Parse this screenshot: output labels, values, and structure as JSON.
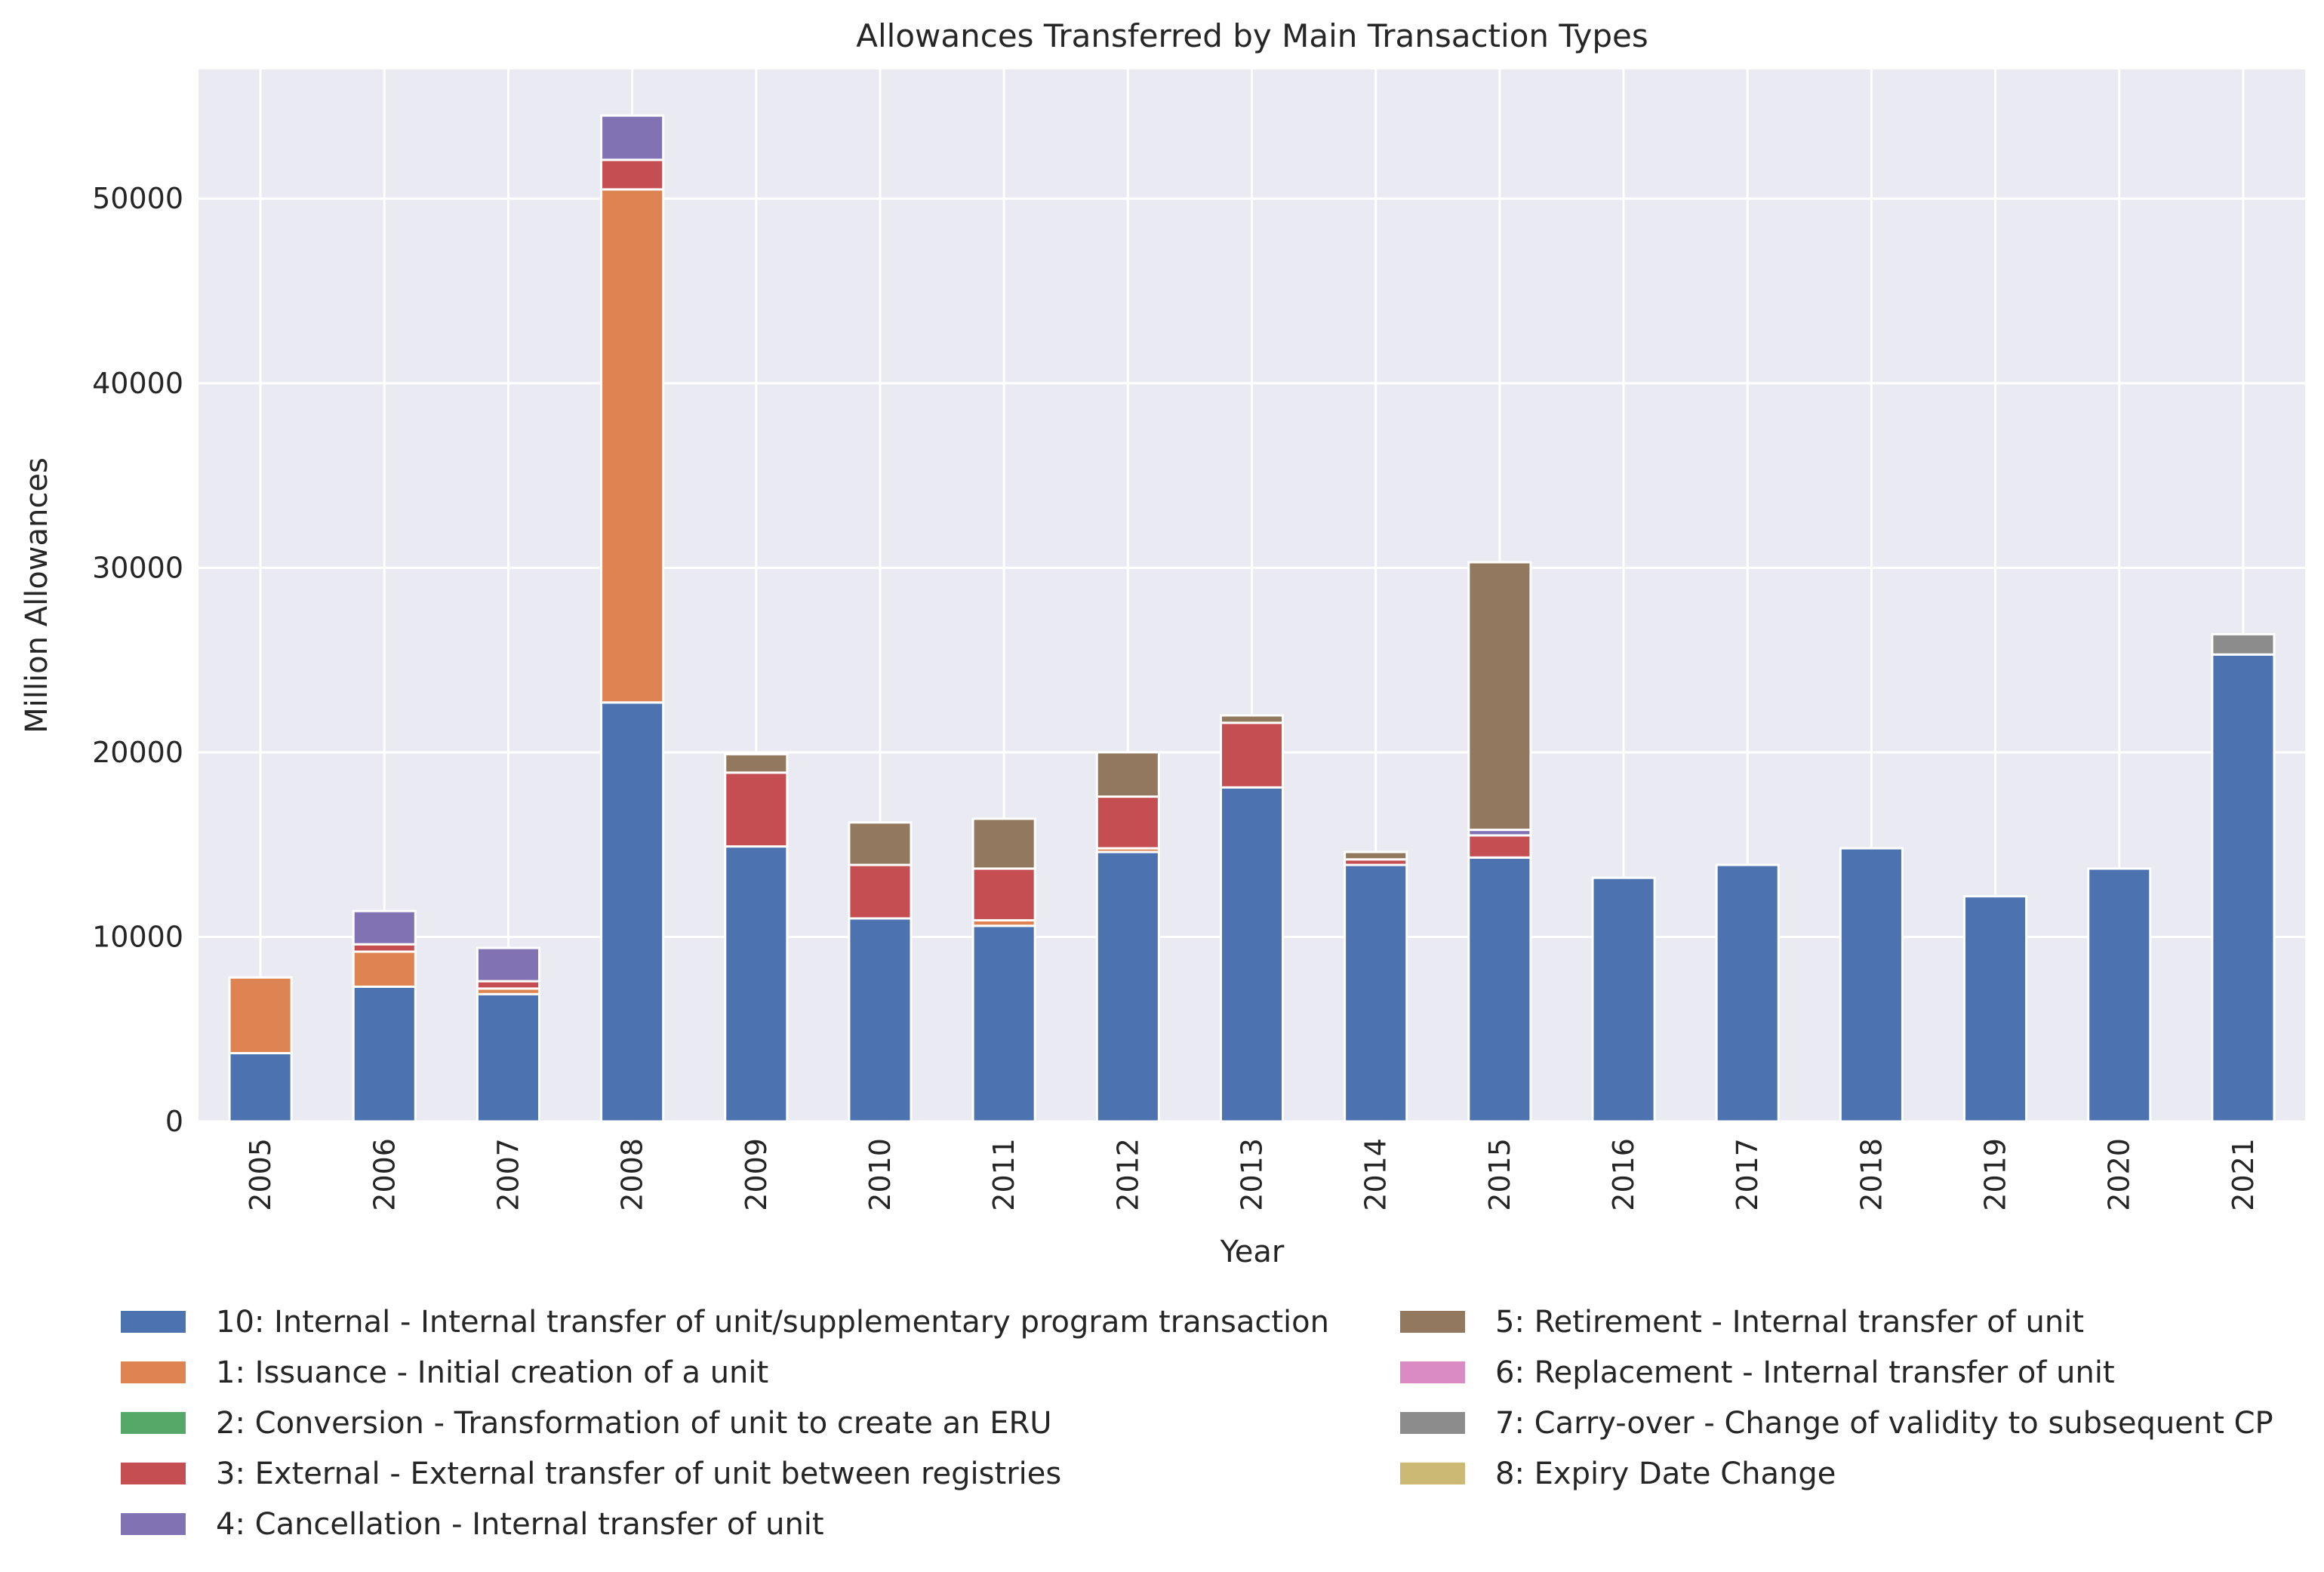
{
  "chart_data": {
    "type": "bar",
    "stacked": true,
    "title": "Allowances Transferred by Main Transaction Types",
    "xlabel": "Year",
    "ylabel": "Million Allowances",
    "ylim": [
      0,
      57000
    ],
    "yticks": [
      0,
      10000,
      20000,
      30000,
      40000,
      50000
    ],
    "grid": true,
    "legend_position": "bottom",
    "categories": [
      "2005",
      "2006",
      "2007",
      "2008",
      "2009",
      "2010",
      "2011",
      "2012",
      "2013",
      "2014",
      "2015",
      "2016",
      "2017",
      "2018",
      "2019",
      "2020",
      "2021"
    ],
    "series": [
      {
        "name": "10: Internal - Internal transfer of unit/supplementary program transaction",
        "color": "#4c72b0",
        "values": [
          3700,
          7300,
          6900,
          22700,
          14900,
          11000,
          10600,
          14600,
          18100,
          13900,
          14300,
          13200,
          13900,
          14800,
          12200,
          13700,
          25300
        ]
      },
      {
        "name": "1: Issuance - Initial creation of a unit",
        "color": "#dd8452",
        "values": [
          4100,
          1900,
          300,
          27800,
          0,
          0,
          300,
          200,
          0,
          0,
          0,
          0,
          0,
          0,
          0,
          0,
          0
        ]
      },
      {
        "name": "2: Conversion - Transformation of unit to create an ERU",
        "color": "#55a868",
        "values": [
          0,
          0,
          0,
          0,
          0,
          0,
          0,
          0,
          0,
          0,
          0,
          0,
          0,
          0,
          0,
          0,
          0
        ]
      },
      {
        "name": "3: External - External transfer of unit between registries",
        "color": "#c44e52",
        "values": [
          0,
          400,
          400,
          1600,
          4000,
          2900,
          2800,
          2800,
          3500,
          300,
          1200,
          0,
          0,
          0,
          0,
          0,
          0
        ]
      },
      {
        "name": "4: Cancellation - Internal transfer of unit",
        "color": "#8172b3",
        "values": [
          0,
          1800,
          1800,
          2400,
          0,
          0,
          0,
          0,
          0,
          0,
          300,
          0,
          0,
          0,
          0,
          0,
          0
        ]
      },
      {
        "name": "5: Retirement - Internal transfer of unit",
        "color": "#937860",
        "values": [
          0,
          0,
          0,
          0,
          1000,
          2300,
          2700,
          2400,
          400,
          400,
          14500,
          0,
          0,
          0,
          0,
          0,
          0
        ]
      },
      {
        "name": "6: Replacement - Internal transfer of unit",
        "color": "#da8bc3",
        "values": [
          0,
          0,
          0,
          0,
          0,
          0,
          0,
          0,
          0,
          0,
          0,
          0,
          0,
          0,
          0,
          0,
          0
        ]
      },
      {
        "name": "7: Carry-over - Change of validity to subsequent CP",
        "color": "#8c8c8c",
        "values": [
          0,
          0,
          0,
          0,
          0,
          0,
          0,
          0,
          0,
          0,
          0,
          0,
          0,
          0,
          0,
          0,
          1100
        ]
      },
      {
        "name": "8: Expiry Date Change",
        "color": "#ccb974",
        "values": [
          0,
          0,
          0,
          0,
          0,
          0,
          0,
          0,
          0,
          0,
          0,
          0,
          0,
          0,
          0,
          0,
          0
        ]
      }
    ]
  }
}
